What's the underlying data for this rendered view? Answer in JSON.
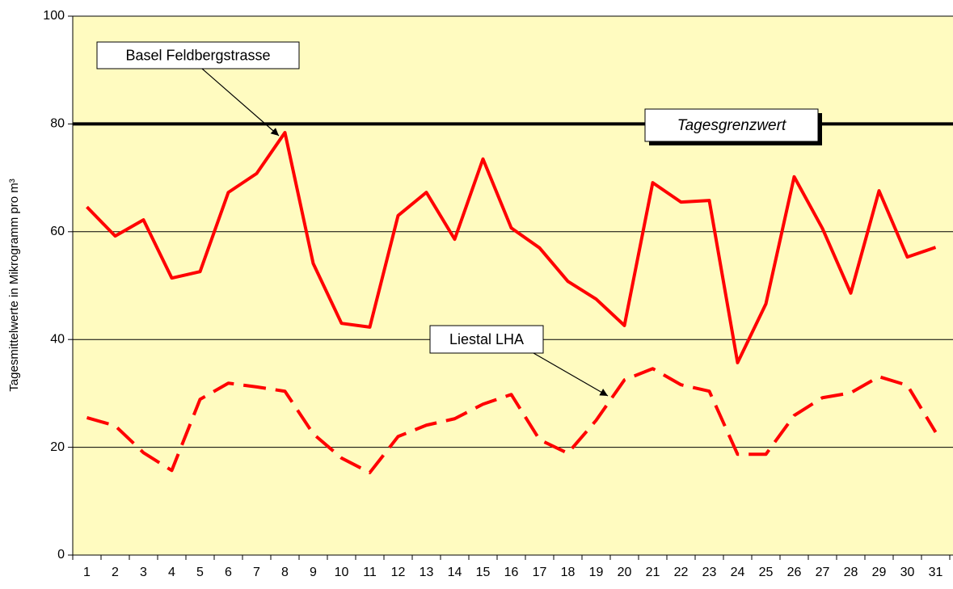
{
  "chart_data": {
    "type": "line",
    "y_label": "Tagesmittelwerte in Mikrogramm pro m³",
    "categories": [
      "1",
      "2",
      "3",
      "4",
      "5",
      "6",
      "7",
      "8",
      "9",
      "10",
      "11",
      "12",
      "13",
      "14",
      "15",
      "16",
      "17",
      "18",
      "19",
      "20",
      "21",
      "22",
      "23",
      "24",
      "25",
      "26",
      "27",
      "28",
      "29",
      "30",
      "31"
    ],
    "series": [
      {
        "name": "Basel Feldbergstrasse",
        "color": "#ff0000",
        "line_style": "solid",
        "values": [
          64.6,
          59.2,
          62.2,
          51.4,
          52.6,
          67.3,
          70.8,
          78.4,
          54.1,
          43.0,
          42.3,
          63.0,
          67.3,
          58.6,
          73.5,
          60.7,
          57.0,
          50.8,
          47.5,
          42.6,
          69.1,
          65.5,
          65.8,
          35.7,
          46.6,
          70.2,
          60.6,
          48.6,
          67.6,
          55.3,
          57.1
        ]
      },
      {
        "name": "Liestal LHA",
        "color": "#ff0000",
        "line_style": "dashed",
        "values": [
          25.5,
          24.0,
          19.0,
          15.7,
          28.9,
          31.9,
          31.2,
          30.4,
          22.5,
          18.0,
          15.3,
          22.0,
          24.1,
          25.3,
          28.0,
          29.8,
          21.4,
          18.9,
          25.0,
          32.5,
          34.6,
          31.6,
          30.4,
          18.7,
          18.7,
          25.9,
          29.2,
          30.1,
          33.1,
          31.5,
          22.8
        ]
      }
    ],
    "threshold": {
      "value": 80,
      "label": "Tagesgrenzwert",
      "color": "#000000"
    },
    "ylim": [
      0,
      100
    ],
    "yticks": [
      0,
      20,
      40,
      60,
      80,
      100
    ],
    "grid": true,
    "background": "#fffbc0"
  }
}
